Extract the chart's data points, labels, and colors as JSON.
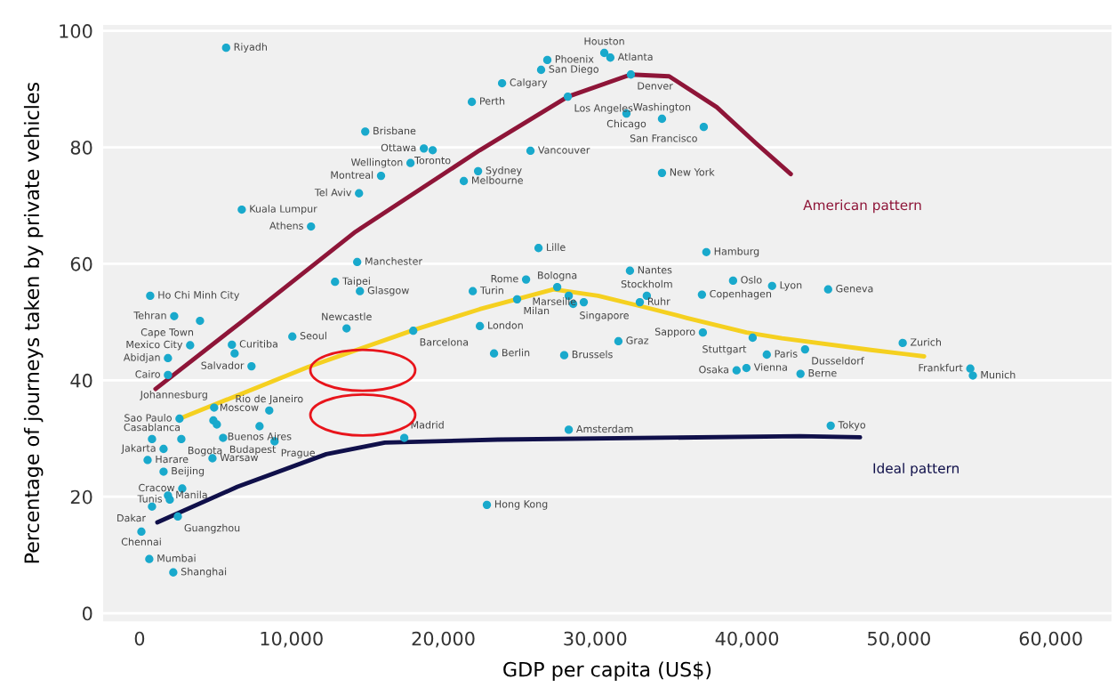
{
  "chart_data": {
    "type": "scatter",
    "xlabel": "GDP per capita (US$)",
    "ylabel": "Percentage of journeys taken by private vehicles",
    "xlim": [
      -2400,
      64000
    ],
    "ylim": [
      -1.4,
      101
    ],
    "xticks": [
      0,
      {
        "value": 10000,
        "label": "10,000"
      },
      {
        "value": 20000,
        "label": "20,000"
      },
      {
        "value": 30000,
        "label": "30,000"
      },
      {
        "value": 40000,
        "label": "40,000"
      },
      {
        "value": 50000,
        "label": "50,000"
      },
      {
        "value": 60000,
        "label": "60,000"
      }
    ],
    "yticks": [
      0,
      20,
      40,
      60,
      80,
      100
    ],
    "grid": "y",
    "legend": false,
    "series": [
      {
        "type": "line",
        "name": "American pattern",
        "color": "#8e1538",
        "x": [
          1050,
          6800,
          14220,
          22400,
          28200,
          32350,
          34870,
          38000,
          40540,
          42880
        ],
        "values": [
          38.5,
          50.2,
          65.5,
          79.5,
          88.7,
          92.5,
          92.2,
          86.9,
          80.8,
          75.4
        ]
      },
      {
        "type": "line",
        "color": "#f5d020",
        "x": [
          2630,
          11120,
          18130,
          22400,
          27260,
          30190,
          33340,
          36040,
          39960,
          42300,
          48150,
          51660
        ],
        "values": [
          33.4,
          42.3,
          48.7,
          52.2,
          55.6,
          54.5,
          52.5,
          50.7,
          48.2,
          47.2,
          45.2,
          44.1
        ]
      },
      {
        "type": "line",
        "name": "Ideal pattern",
        "color": "#10104a",
        "x": [
          1170,
          6440,
          12290,
          16150,
          23580,
          43470,
          47440
        ],
        "values": [
          15.6,
          21.7,
          27.3,
          29.3,
          29.8,
          30.4,
          30.2
        ]
      },
      {
        "marker": "circle",
        "color": "#19a9cc",
        "x": [
          5700,
          14860,
          18720,
          19300,
          17840,
          15900,
          14450,
          6730,
          11290,
          14330,
          12870,
          14510,
          700,
          21880,
          22290,
          21350,
          21940,
          26850,
          26440,
          30600,
          31000,
          23870,
          32350,
          28200,
          32060,
          34400,
          37150,
          25740,
          34400,
          26270,
          37320,
          32290,
          25450,
          27500,
          33400,
          39080,
          41650,
          37030,
          24860,
          28260,
          28550,
          29250,
          32940,
          22410,
          23340,
          27960,
          31530,
          37090,
          40370,
          41300,
          39960,
          39310,
          28260,
          22870,
          43520,
          43820,
          50250,
          54700,
          54870,
          45510,
          45340,
          2280,
          3980,
          3330,
          6080,
          6260,
          10060,
          13630,
          18020,
          1870,
          7370,
          1870,
          4910,
          4860,
          5090,
          8540,
          7900,
          2630,
          820,
          2750,
          5500,
          8890,
          1580,
          530,
          4800,
          1580,
          2810,
          1870,
          1990,
          820,
          2520,
          120,
          640,
          2220,
          17430
        ],
        "values": [
          97.1,
          82.7,
          79.8,
          79.5,
          77.3,
          75.1,
          72.1,
          69.3,
          66.4,
          60.3,
          56.9,
          55.3,
          54.5,
          87.8,
          75.9,
          74.2,
          55.3,
          95.0,
          93.3,
          96.2,
          95.4,
          91.0,
          92.5,
          88.7,
          85.8,
          84.9,
          83.5,
          79.4,
          75.6,
          62.7,
          62.0,
          58.8,
          57.3,
          56.0,
          54.5,
          57.1,
          56.2,
          54.7,
          53.9,
          54.5,
          53.1,
          53.4,
          53.4,
          49.3,
          44.6,
          44.3,
          46.7,
          48.2,
          47.3,
          44.4,
          42.1,
          41.7,
          31.5,
          18.6,
          41.1,
          45.3,
          46.4,
          42.0,
          40.8,
          32.2,
          55.6,
          51.0,
          50.2,
          46.0,
          46.1,
          44.6,
          47.5,
          48.9,
          48.5,
          43.8,
          42.4,
          40.9,
          35.3,
          33.1,
          32.4,
          34.8,
          32.1,
          33.4,
          29.9,
          29.9,
          30.1,
          29.5,
          28.2,
          26.3,
          26.6,
          24.3,
          21.4,
          20.2,
          19.5,
          18.3,
          16.6,
          14.0,
          9.3,
          7.0,
          30.1
        ],
        "value_labels": [
          "Riyadh",
          "Brisbane",
          "Ottawa",
          "Toronto",
          "Wellington",
          "Montreal",
          "Tel Aviv",
          "Kuala Lumpur",
          "Athens",
          "Manchester",
          "Taipei",
          "Glasgow",
          "Ho Chi Minh City",
          "Perth",
          "Sydney",
          "Melbourne",
          "Turin",
          "Phoenix",
          "San Diego",
          "Houston",
          "Atlanta",
          "Calgary",
          "Denver",
          "Los Angeles",
          "Chicago",
          "Washington",
          "San Francisco",
          "Vancouver",
          "New York",
          "Lille",
          "Hamburg",
          "Nantes",
          "Rome",
          "Bologna",
          "Stockholm",
          "Oslo",
          "Lyon",
          "Copenhagen",
          "Milan",
          null,
          "Singapore",
          "Marseille",
          "Ruhr",
          "London",
          "Berlin",
          "Brussels",
          "Graz",
          "Sapporo",
          "Stuttgart",
          "Paris",
          "Vienna",
          "Osaka",
          "Amsterdam",
          "Hong Kong",
          "Berne",
          "Dusseldorf",
          "Zurich",
          "Frankfurt",
          "Munich",
          "Tokyo",
          "Geneva",
          "Tehran",
          "Cape Town",
          "Mexico City",
          "Curitiba",
          null,
          "Seoul",
          "Newcastle",
          "Barcelona",
          "Abidjan",
          "Salvador",
          "Cairo",
          "Johannesburg",
          "Moscow",
          null,
          "Rio de Janeiro",
          "Buenos Aires",
          "Sao Paulo",
          "Casablanca",
          "Bogota",
          "Budapest",
          "Prague",
          "Jakarta",
          "Harare",
          "Warsaw",
          "Beijing",
          "Cracow",
          "Manila",
          "Tunis",
          "Dakar",
          "Guangzhou",
          "Chennai",
          "Mumbai",
          "Shanghai",
          "Madrid"
        ]
      }
    ]
  }
}
